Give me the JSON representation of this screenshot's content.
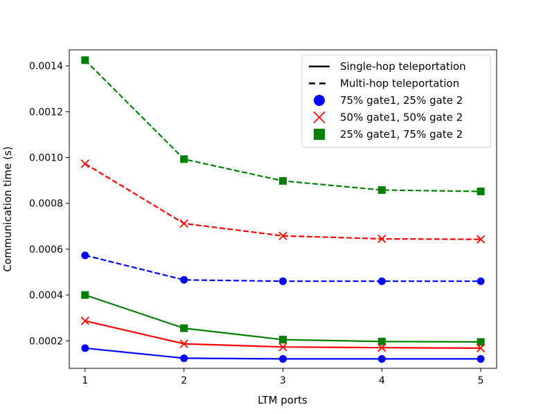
{
  "chart_data": {
    "type": "line",
    "title": "",
    "xlabel": "LTM ports",
    "ylabel": "Communication time (s)",
    "x": [
      1,
      2,
      3,
      4,
      5
    ],
    "xticks": [
      "1",
      "2",
      "3",
      "4",
      "5"
    ],
    "xlim": [
      0.84,
      5.16
    ],
    "ylim": [
      8e-05,
      0.00147
    ],
    "yticks": [
      "0.0002",
      "0.0004",
      "0.0006",
      "0.0008",
      "0.0010",
      "0.0012",
      "0.0014"
    ],
    "ytick_values": [
      0.0002,
      0.0004,
      0.0006,
      0.0008,
      0.001,
      0.0012,
      0.0014
    ],
    "grid": false,
    "legend_position": "top-right",
    "legend": [
      {
        "label": "Single-hop teleportation",
        "kind": "line",
        "dash": "solid",
        "color": "#000000"
      },
      {
        "label": "Multi-hop teleportation",
        "kind": "line",
        "dash": "dashed",
        "color": "#000000"
      },
      {
        "label": "75% gate1, 25% gate 2",
        "kind": "marker",
        "marker": "circle",
        "color": "#0000ff"
      },
      {
        "label": "50% gate1, 50% gate 2",
        "kind": "marker",
        "marker": "x",
        "color": "#ff0000"
      },
      {
        "label": "25% gate1, 75% gate 2",
        "kind": "marker",
        "marker": "square",
        "color": "#008000"
      }
    ],
    "series": [
      {
        "name": "Multi-hop, 25% gate1, 75% gate 2",
        "dash": "dashed",
        "marker": "square",
        "color": "#008000",
        "values": [
          0.001425,
          0.000993,
          0.000898,
          0.000858,
          0.000852
        ]
      },
      {
        "name": "Multi-hop, 50% gate1, 50% gate 2",
        "dash": "dashed",
        "marker": "x",
        "color": "#ff0000",
        "values": [
          0.000973,
          0.000712,
          0.000658,
          0.000645,
          0.000643
        ]
      },
      {
        "name": "Multi-hop, 75% gate1, 25% gate 2",
        "dash": "dashed",
        "marker": "circle",
        "color": "#0000ff",
        "values": [
          0.000573,
          0.000466,
          0.00046,
          0.00046,
          0.00046
        ]
      },
      {
        "name": "Single-hop, 25% gate1, 75% gate 2",
        "dash": "solid",
        "marker": "square",
        "color": "#008000",
        "values": [
          0.0004,
          0.000255,
          0.000205,
          0.000197,
          0.000195
        ]
      },
      {
        "name": "Single-hop, 50% gate1, 50% gate 2",
        "dash": "solid",
        "marker": "x",
        "color": "#ff0000",
        "values": [
          0.000287,
          0.000187,
          0.000173,
          0.00017,
          0.000168
        ]
      },
      {
        "name": "Single-hop, 75% gate1, 25% gate 2",
        "dash": "solid",
        "marker": "circle",
        "color": "#0000ff",
        "values": [
          0.000168,
          0.000124,
          0.000121,
          0.000121,
          0.000121
        ]
      }
    ]
  }
}
